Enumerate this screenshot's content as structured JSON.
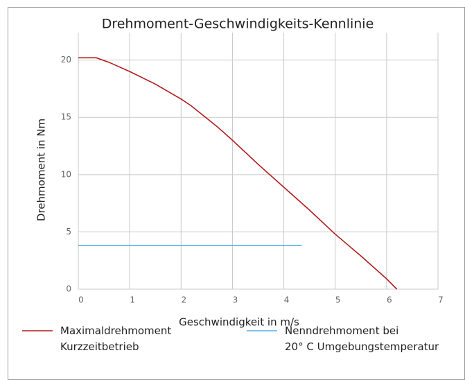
{
  "chart_data": {
    "type": "line",
    "title": "Drehmoment-Geschwindigkeits-Kennlinie",
    "xlabel": "Geschwindigkeit in m/s",
    "ylabel": "Drehmoment in Nm",
    "xlim": [
      0,
      7
    ],
    "ylim": [
      0,
      22.4
    ],
    "xticks": [
      0,
      1,
      2,
      3,
      4,
      5,
      6,
      7
    ],
    "yticks": [
      0,
      5,
      10,
      15,
      20
    ],
    "grid": true,
    "legend": "bottom",
    "series": [
      {
        "name": "Maximaldrehmoment\nKurzzeitbetrieb",
        "color": "#b01c1c",
        "x": [
          0,
          0.35,
          0.6,
          1,
          1.5,
          2,
          2.2,
          2.7,
          3,
          3.5,
          4,
          4.5,
          5,
          5.5,
          6,
          6.2
        ],
        "values": [
          20.2,
          20.2,
          19.8,
          19,
          17.9,
          16.6,
          16.0,
          14.2,
          13,
          10.9,
          8.9,
          6.9,
          4.8,
          2.9,
          0.9,
          0
        ]
      },
      {
        "name": "Nenndrehmoment bei\n20° C Umgebungstemperatur",
        "color": "#5aaee8",
        "x": [
          0,
          4.35
        ],
        "values": [
          3.8,
          3.8
        ]
      }
    ]
  }
}
